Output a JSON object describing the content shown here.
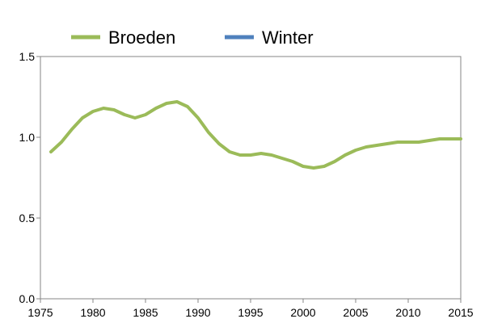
{
  "chart_data": {
    "type": "line",
    "title": "",
    "xlabel": "",
    "ylabel": "",
    "xlim": [
      1975,
      2015
    ],
    "ylim": [
      0.0,
      1.5
    ],
    "x_ticks": [
      "1975",
      "1980",
      "1985",
      "1990",
      "1995",
      "2000",
      "2005",
      "2010",
      "2015"
    ],
    "y_ticks": [
      "0.0",
      "0.5",
      "1.0",
      "1.5"
    ],
    "grid": false,
    "legend_position": "top",
    "series": [
      {
        "name": "Broeden",
        "color": "#9BBB59",
        "points": [
          [
            1976,
            0.91
          ],
          [
            1977,
            0.97
          ],
          [
            1978,
            1.05
          ],
          [
            1979,
            1.12
          ],
          [
            1980,
            1.16
          ],
          [
            1981,
            1.18
          ],
          [
            1982,
            1.17
          ],
          [
            1983,
            1.14
          ],
          [
            1984,
            1.12
          ],
          [
            1985,
            1.14
          ],
          [
            1986,
            1.18
          ],
          [
            1987,
            1.21
          ],
          [
            1988,
            1.22
          ],
          [
            1989,
            1.19
          ],
          [
            1990,
            1.12
          ],
          [
            1991,
            1.03
          ],
          [
            1992,
            0.96
          ],
          [
            1993,
            0.91
          ],
          [
            1994,
            0.89
          ],
          [
            1995,
            0.89
          ],
          [
            1996,
            0.9
          ],
          [
            1997,
            0.89
          ],
          [
            1998,
            0.87
          ],
          [
            1999,
            0.85
          ],
          [
            2000,
            0.82
          ],
          [
            2001,
            0.81
          ],
          [
            2002,
            0.82
          ],
          [
            2003,
            0.85
          ],
          [
            2004,
            0.89
          ],
          [
            2005,
            0.92
          ],
          [
            2006,
            0.94
          ],
          [
            2007,
            0.95
          ],
          [
            2008,
            0.96
          ],
          [
            2009,
            0.97
          ],
          [
            2010,
            0.97
          ],
          [
            2011,
            0.97
          ],
          [
            2012,
            0.98
          ],
          [
            2013,
            0.99
          ],
          [
            2014,
            0.99
          ],
          [
            2015,
            0.99
          ]
        ]
      },
      {
        "name": "Winter",
        "color": "#4F81BD",
        "points": []
      }
    ]
  }
}
